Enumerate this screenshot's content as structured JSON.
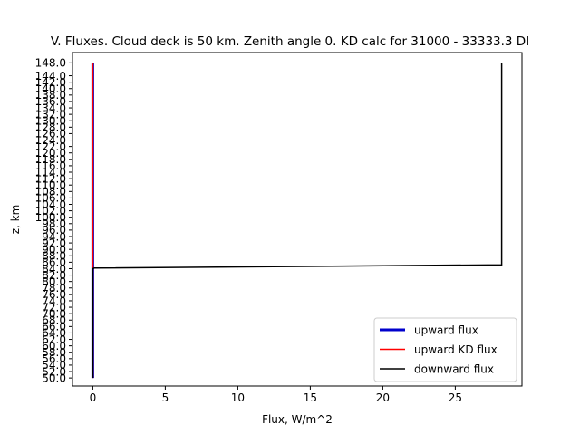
{
  "chart_data": {
    "type": "line",
    "title": "V. Fluxes. Cloud deck is 50 km. Zenith angle 0. KD calc for 31000 - 33333.3 DI",
    "xlabel": "Flux, W/m^2",
    "ylabel": "z, km",
    "xlim": [
      -1.4,
      29.6
    ],
    "ylim": [
      47.5,
      151.2
    ],
    "xticks": [
      0,
      5,
      10,
      15,
      20,
      25
    ],
    "xtick_labels": [
      "0",
      "5",
      "10",
      "15",
      "20",
      "25"
    ],
    "yticks": [
      50,
      52,
      54,
      56,
      58,
      60,
      62,
      64,
      66,
      68,
      70,
      72,
      74,
      76,
      78,
      80,
      82,
      84,
      86,
      88,
      90,
      92,
      94,
      96,
      98,
      100,
      102,
      104,
      106,
      108,
      110,
      112,
      114,
      116,
      118,
      120,
      122,
      124,
      126,
      128,
      130,
      132,
      134,
      136,
      138,
      140,
      142,
      144,
      148
    ],
    "ytick_labels": [
      "50.0",
      "52.0",
      "54.0",
      "56.0",
      "58.0",
      "60.0",
      "62.0",
      "64.0",
      "66.0",
      "68.0",
      "70.0",
      "72.0",
      "74.0",
      "76.0",
      "78.0",
      "80.0",
      "82.0",
      "84.0",
      "86.0",
      "88.0",
      "90.0",
      "92.0",
      "94.0",
      "96.0",
      "98.0",
      "100.0",
      "102.0",
      "104.0",
      "106.0",
      "108.0",
      "110.0",
      "112.0",
      "114.0",
      "116.0",
      "118.0",
      "120.0",
      "122.0",
      "124.0",
      "126.0",
      "128.0",
      "130.0",
      "132.0",
      "134.0",
      "136.0",
      "138.0",
      "140.0",
      "142.0",
      "144.0",
      "148.0"
    ],
    "grid": false,
    "legend_position": "lower-right",
    "series": [
      {
        "name": "upward flux",
        "color": "#0000cc",
        "linewidth": 3,
        "x": [
          0.0,
          0.0,
          0.0
        ],
        "y": [
          50.0,
          86.0,
          148.0
        ]
      },
      {
        "name": "upward KD flux",
        "color": "#ff0000",
        "linewidth": 1.5,
        "x": [
          0.0,
          0.0,
          0.0
        ],
        "y": [
          50.0,
          86.0,
          148.0
        ]
      },
      {
        "name": "downward flux",
        "color": "#000000",
        "linewidth": 1.5,
        "x": [
          0.0,
          0.0,
          0.1,
          28.2,
          28.2
        ],
        "y": [
          50.0,
          84.0,
          84.2,
          85.2,
          148.0
        ]
      }
    ]
  }
}
